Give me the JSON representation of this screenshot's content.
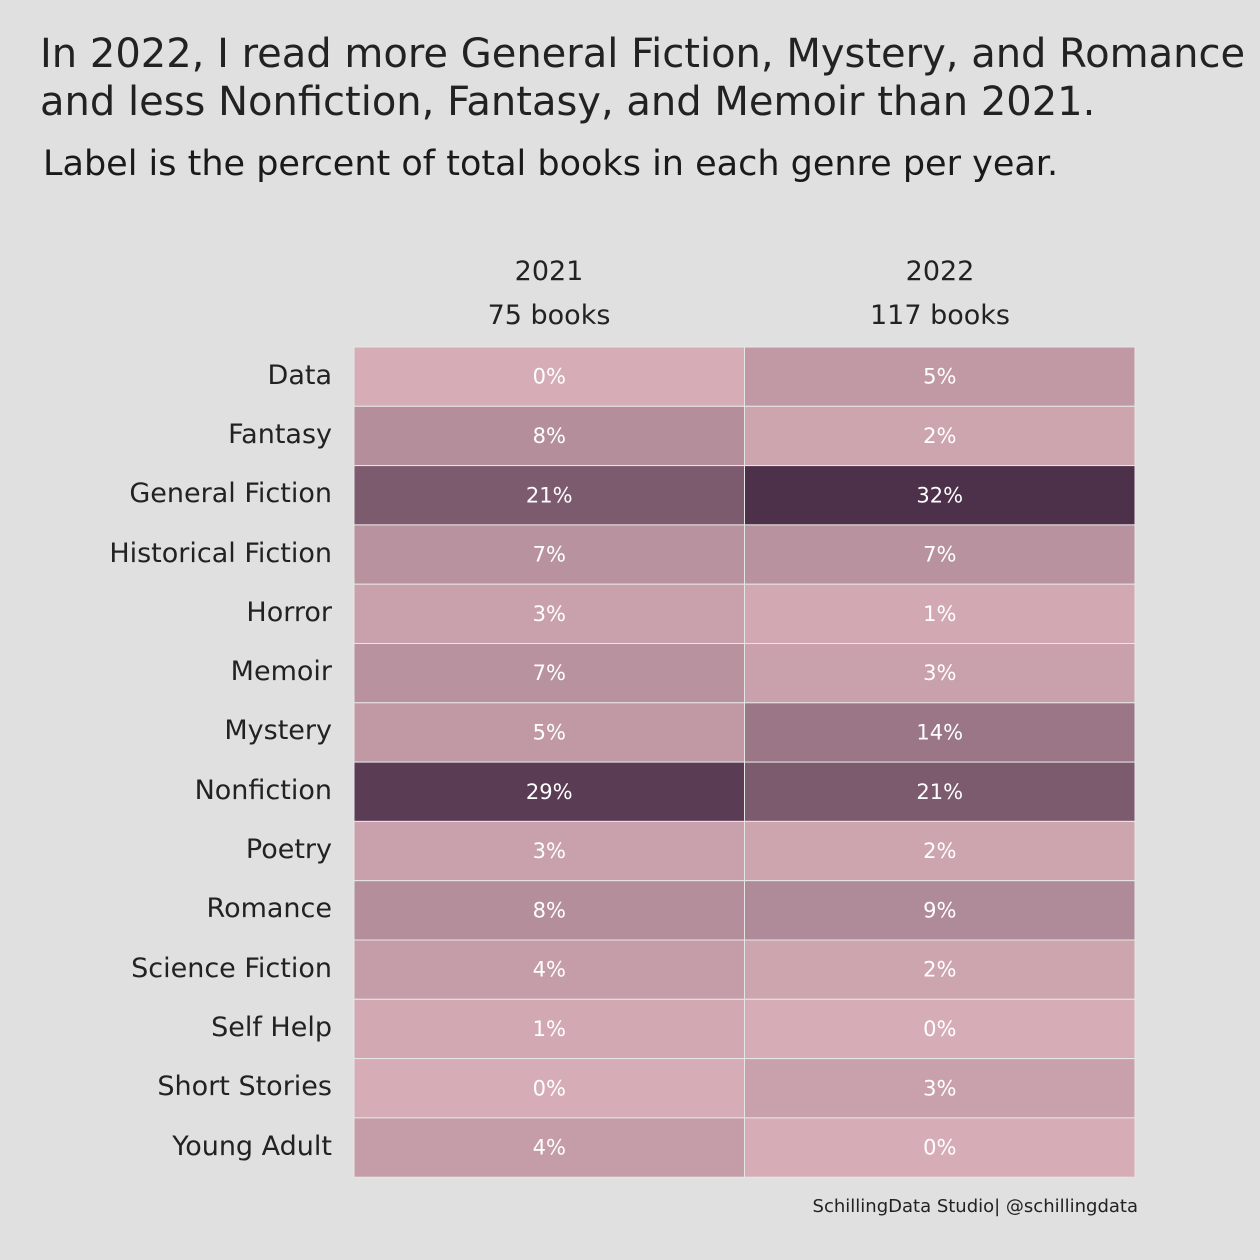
{
  "title": {
    "line1": "In 2022, I read more General Fiction, Mystery, and Romance",
    "line2": "and less Nonfiction, Fantasy, and Memoir than 2021."
  },
  "subtitle": "Label is the percent of total books in each genre per year.",
  "caption": "SchillingData Studio| @schillingdata",
  "columns": [
    {
      "year": "2021",
      "books": "75 books"
    },
    {
      "year": "2022",
      "books": "117 books"
    }
  ],
  "colors": {
    "background": "#e0e0e0",
    "low": "#d6adb6",
    "high": "#4d304a",
    "label": "#ffffff",
    "gridline": "#e6e6e6"
  },
  "chart_data": {
    "type": "heatmap",
    "x": [
      "2021",
      "2022"
    ],
    "y": [
      "Data",
      "Fantasy",
      "General Fiction",
      "Historical Fiction",
      "Horror",
      "Memoir",
      "Mystery",
      "Nonfiction",
      "Poetry",
      "Romance",
      "Science Fiction",
      "Self Help",
      "Short Stories",
      "Young Adult"
    ],
    "values": [
      [
        0,
        5
      ],
      [
        8,
        2
      ],
      [
        21,
        32
      ],
      [
        7,
        7
      ],
      [
        3,
        1
      ],
      [
        7,
        3
      ],
      [
        5,
        14
      ],
      [
        29,
        21
      ],
      [
        3,
        2
      ],
      [
        8,
        9
      ],
      [
        4,
        2
      ],
      [
        1,
        0
      ],
      [
        0,
        3
      ],
      [
        4,
        0
      ]
    ],
    "labels": [
      [
        "0%",
        "5%"
      ],
      [
        "8%",
        "2%"
      ],
      [
        "21%",
        "32%"
      ],
      [
        "7%",
        "7%"
      ],
      [
        "3%",
        "1%"
      ],
      [
        "7%",
        "3%"
      ],
      [
        "5%",
        "14%"
      ],
      [
        "29%",
        "21%"
      ],
      [
        "3%",
        "2%"
      ],
      [
        "8%",
        "9%"
      ],
      [
        "4%",
        "2%"
      ],
      [
        "1%",
        "0%"
      ],
      [
        "0%",
        "3%"
      ],
      [
        "4%",
        "0%"
      ]
    ],
    "unit": "%",
    "color_range": [
      0,
      32
    ]
  }
}
